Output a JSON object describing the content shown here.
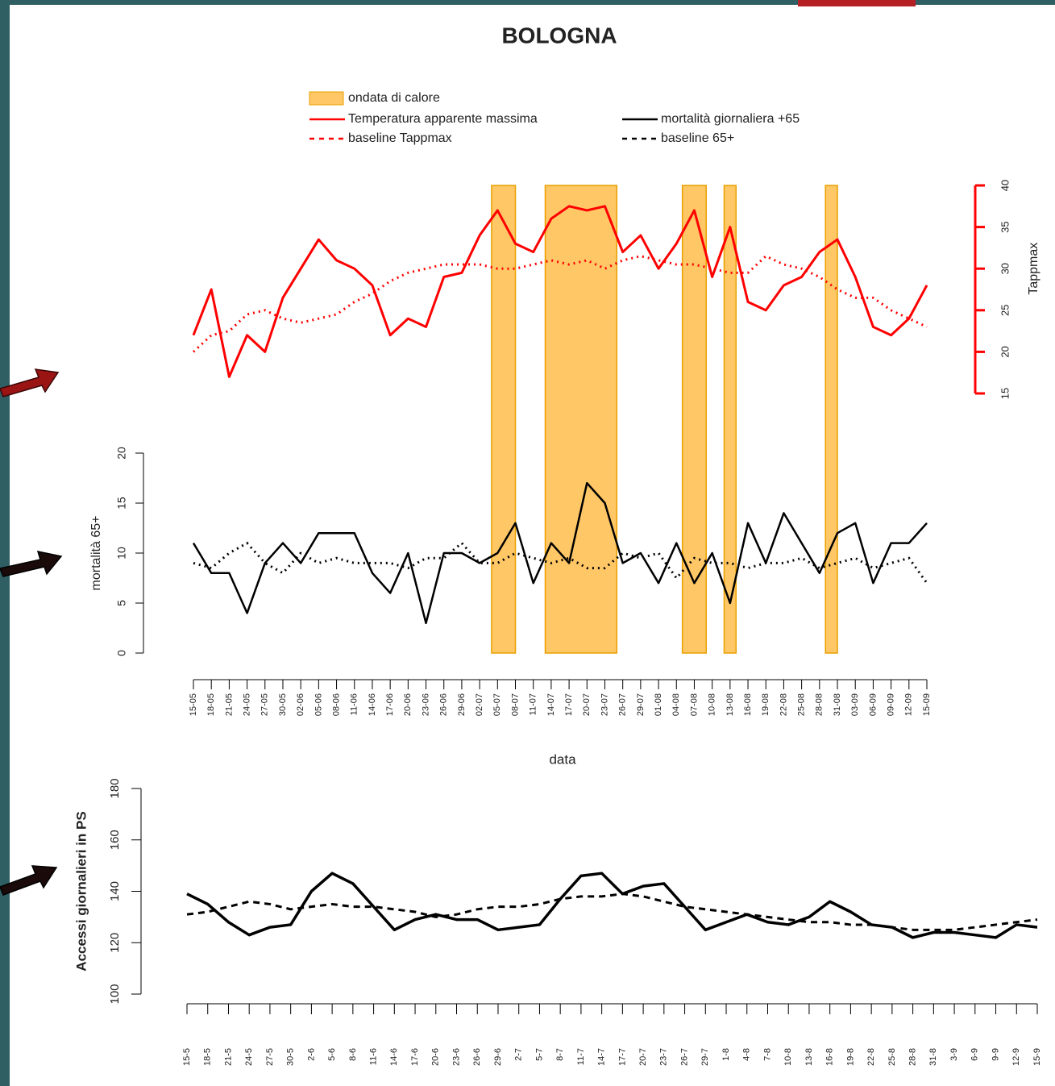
{
  "chart_data": [
    {
      "type": "line",
      "title": "BOLOGNA",
      "y2label": "Tappmax",
      "y2lim": [
        15,
        40
      ],
      "y2ticks": [
        15,
        20,
        25,
        30,
        35,
        40
      ],
      "axis_color": "#ff0000",
      "highlight": {
        "name": "ondata di calore",
        "color": "#ffc766",
        "edge": "#e8a000",
        "ranges": [
          {
            "start": "04-07",
            "end": "08-07"
          },
          {
            "start": "13-07",
            "end": "25-07"
          },
          {
            "start": "05-08",
            "end": "09-08"
          },
          {
            "start": "12-08",
            "end": "14-08"
          },
          {
            "start": "29-08",
            "end": "31-08"
          }
        ]
      },
      "series": [
        {
          "name": "Temperatura apparente massima",
          "color": "#ff0000",
          "style": "solid",
          "axis": "y2",
          "values": [
            22,
            27.5,
            17,
            22,
            20,
            26.5,
            30,
            33.5,
            31,
            30,
            28,
            22,
            24,
            23,
            29,
            29.5,
            34,
            37,
            33,
            32,
            36,
            37.5,
            37,
            37.5,
            32,
            34,
            30,
            33,
            37,
            29,
            35,
            26,
            25,
            28,
            29,
            32,
            33.5,
            29,
            23,
            22,
            24,
            28
          ]
        },
        {
          "name": "baseline Tappmax",
          "color": "#ff0000",
          "style": "dotted",
          "axis": "y2",
          "values": [
            20,
            22,
            22.5,
            24.5,
            25,
            24,
            23.5,
            24,
            24.5,
            26,
            27,
            28.5,
            29.5,
            30,
            30.5,
            30.5,
            30.5,
            30,
            30,
            30.5,
            31,
            30.5,
            31,
            30,
            31,
            31.5,
            31,
            30.5,
            30.5,
            30,
            29.5,
            29.5,
            31.5,
            30.5,
            30,
            29,
            27.5,
            26.5,
            26.5,
            25,
            24,
            23
          ]
        },
        {
          "name": "mortalità giornaliera +65",
          "color": "#000000",
          "style": "solid",
          "legend_only": true
        },
        {
          "name": "baseline 65+",
          "color": "#000000",
          "style": "dotted",
          "legend_only": true
        }
      ]
    },
    {
      "type": "line",
      "ylabel": "mortalità 65+",
      "xlabel": "data",
      "ylim": [
        0,
        20
      ],
      "yticks": [
        0,
        5,
        10,
        15,
        20
      ],
      "categories": [
        "15-05",
        "18-05",
        "21-05",
        "24-05",
        "27-05",
        "30-05",
        "02-06",
        "05-06",
        "08-06",
        "11-06",
        "14-06",
        "17-06",
        "20-06",
        "23-06",
        "26-06",
        "29-06",
        "02-07",
        "05-07",
        "08-07",
        "11-07",
        "14-07",
        "17-07",
        "20-07",
        "23-07",
        "26-07",
        "29-07",
        "01-08",
        "04-08",
        "07-08",
        "10-08",
        "13-08",
        "16-08",
        "19-08",
        "22-08",
        "25-08",
        "28-08",
        "31-08",
        "03-09",
        "06-09",
        "09-09",
        "12-09",
        "15-09"
      ],
      "series": [
        {
          "color": "#000000",
          "style": "solid",
          "values": [
            11,
            8,
            8,
            4,
            9,
            11,
            9,
            12,
            12,
            12,
            8,
            6,
            10,
            3,
            10,
            10,
            9,
            10,
            13,
            7,
            11,
            9,
            17,
            15,
            9,
            10,
            7,
            11,
            7,
            10,
            5,
            13,
            9,
            14,
            11,
            8,
            12,
            13,
            7,
            11,
            11,
            13
          ]
        },
        {
          "color": "#000000",
          "style": "dotted",
          "values": [
            9,
            8.5,
            10,
            11,
            9,
            8,
            10,
            9,
            9.5,
            9,
            9,
            9,
            8.5,
            9.5,
            9.5,
            11,
            9,
            9,
            10,
            9.5,
            9,
            9.5,
            8.5,
            8.5,
            10,
            9.5,
            10,
            7.5,
            9.5,
            9,
            9,
            8.5,
            9,
            9,
            9.5,
            8.5,
            9,
            9.5,
            8.5,
            9,
            9.5,
            7
          ]
        }
      ]
    },
    {
      "type": "line",
      "ylabel": "Accessi giornalieri in PS",
      "ylim": [
        100,
        180
      ],
      "yticks": [
        100,
        120,
        140,
        160,
        180
      ],
      "categories": [
        "15-5",
        "18-5",
        "21-5",
        "24-5",
        "27-5",
        "30-5",
        "2-6",
        "5-6",
        "8-6",
        "11-6",
        "14-6",
        "17-6",
        "20-6",
        "23-6",
        "26-6",
        "29-6",
        "2-7",
        "5-7",
        "8-7",
        "11-7",
        "14-7",
        "17-7",
        "20-7",
        "23-7",
        "26-7",
        "29-7",
        "1-8",
        "4-8",
        "7-8",
        "10-8",
        "13-8",
        "16-8",
        "19-8",
        "22-8",
        "25-8",
        "28-8",
        "31-8",
        "3-9",
        "6-9",
        "9-9",
        "12-9",
        "15-9"
      ],
      "series": [
        {
          "color": "#000000",
          "style": "solid",
          "values": [
            139,
            135,
            128,
            123,
            126,
            127,
            140,
            147,
            143,
            134,
            125,
            129,
            131,
            129,
            129,
            125,
            126,
            127,
            137,
            146,
            147,
            139,
            142,
            143,
            134,
            125,
            128,
            131,
            128,
            127,
            130,
            136,
            132,
            127,
            126,
            122,
            124,
            124,
            123,
            122,
            127,
            126
          ]
        },
        {
          "color": "#000000",
          "style": "dashed",
          "values": [
            131,
            132,
            134,
            136,
            135,
            133,
            134,
            135,
            134,
            134,
            133,
            132,
            130,
            131,
            133,
            134,
            134,
            135,
            137,
            138,
            138,
            139,
            138,
            136,
            134,
            133,
            132,
            131,
            130,
            129,
            128,
            128,
            127,
            127,
            126,
            125,
            125,
            125,
            126,
            127,
            128,
            129
          ]
        }
      ]
    }
  ]
}
